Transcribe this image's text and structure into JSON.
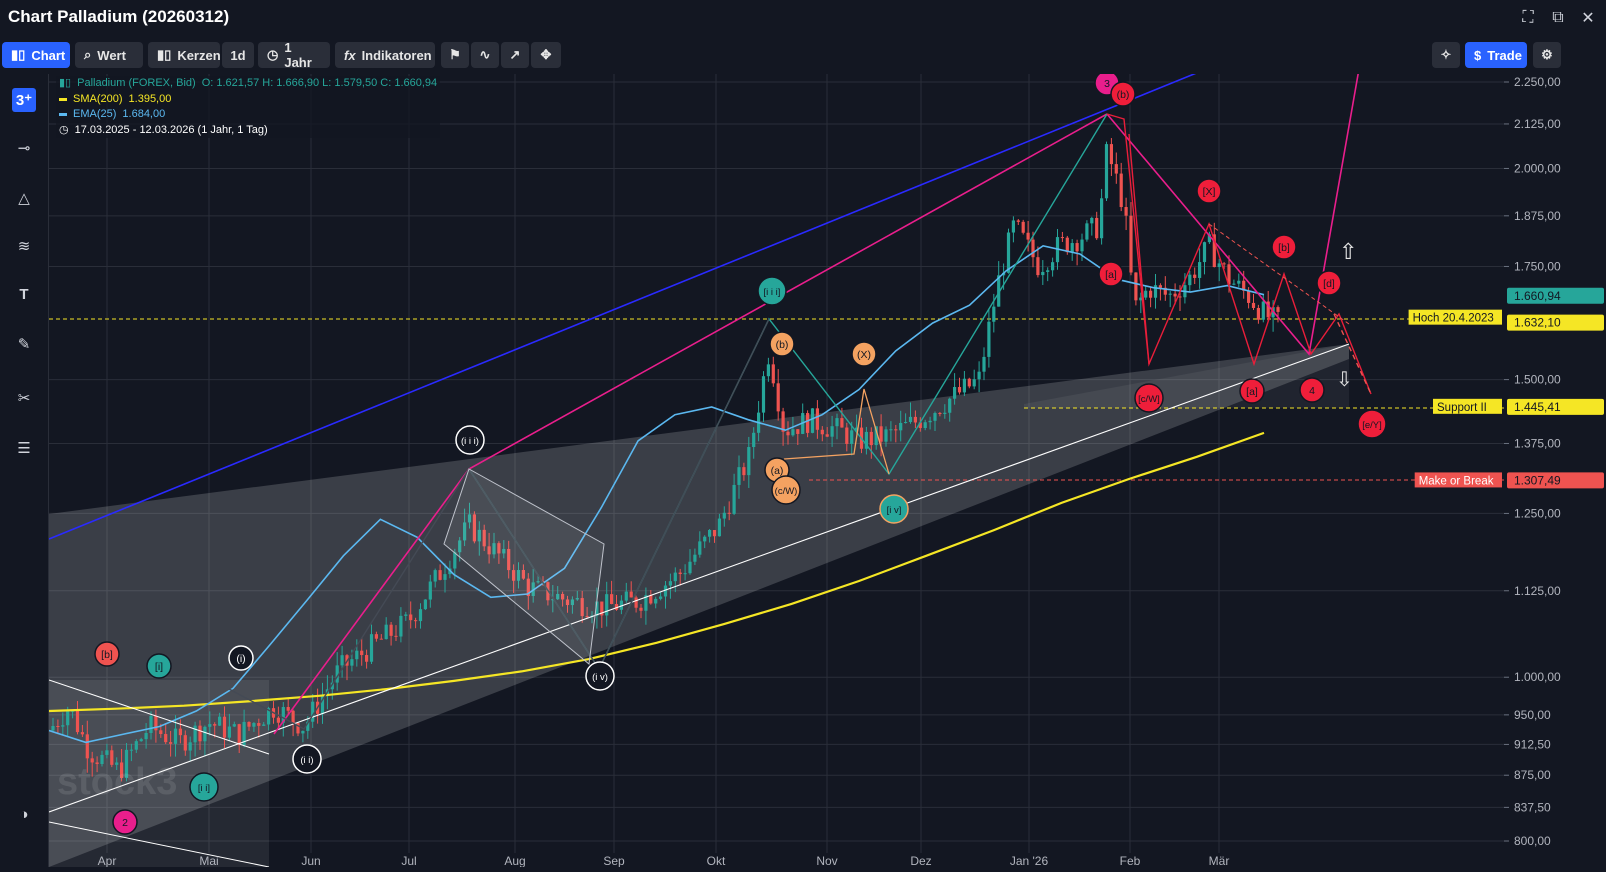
{
  "window": {
    "title": "Chart Palladium (20260312)"
  },
  "toolbar": {
    "chart_label": "Chart",
    "wert_label": "Wert",
    "kerzen_label": "Kerzen",
    "interval_label": "1d",
    "period_label": "1 Jahr",
    "indicators_label": "Indikatoren",
    "trade_label": "Trade"
  },
  "legend": {
    "instrument": "Palladium (FOREX, Bid)",
    "ohlc": "O: 1.621,57  H: 1.666,90  L: 1.579,50  C: 1.660,94",
    "sma_label": "SMA(200)",
    "sma_value": "1.395,00",
    "ema_label": "EMA(25)",
    "ema_value": "1.684,00",
    "range": "17.03.2025 - 12.03.2026  (1 Jahr, 1 Tag)"
  },
  "colors": {
    "sma": "#f5e625",
    "ema": "#5bb8f0",
    "up": "#26a69a",
    "down": "#ef5350",
    "accent": "#2962ff"
  },
  "chart_data": {
    "type": "candlestick",
    "x_labels": [
      "Apr",
      "Mai",
      "Jun",
      "Jul",
      "Aug",
      "Sep",
      "Okt",
      "Nov",
      "Dez",
      "Jan '26",
      "Feb",
      "Mär"
    ],
    "y_ticks": [
      "2.250,00",
      "2.125,00",
      "2.000,00",
      "1.875,00",
      "1.750,00",
      "1.500,00",
      "1.375,00",
      "1.250,00",
      "1.125,00",
      "1.000,00",
      "950,00",
      "912,50",
      "875,00",
      "837,50",
      "800,00"
    ],
    "y_scale": "log",
    "y_range": [
      800,
      2300
    ],
    "price_tags": [
      {
        "text": "1.660,94",
        "price": 1660.94,
        "color": "#26a69a"
      },
      {
        "text": "1.632,10",
        "price": 1632.1,
        "color": "#f5e625"
      },
      {
        "text": "1.445,41",
        "price": 1445.41,
        "color": "#f5e625"
      },
      {
        "text": "1.307,49",
        "price": 1307.49,
        "color": "#ef5350"
      }
    ],
    "level_labels": [
      {
        "text": "Hoch 20.4.2023",
        "price": 1632.1,
        "color": "#f5e625"
      },
      {
        "text": "Support II",
        "price": 1445.41,
        "color": "#f5e625"
      },
      {
        "text": "Make or Break",
        "price": 1307.49,
        "color": "#ef5350"
      }
    ],
    "series": [
      {
        "name": "SMA(200)",
        "values": [
          955,
          958,
          962,
          968,
          975,
          984,
          995,
          1008,
          1025,
          1048,
          1075,
          1105,
          1140,
          1180,
          1222,
          1268,
          1310,
          1350,
          1395
        ]
      },
      {
        "name": "EMA(25)",
        "values": [
          930,
          915,
          925,
          935,
          955,
          985,
          1045,
          1110,
          1180,
          1240,
          1210,
          1150,
          1115,
          1120,
          1160,
          1260,
          1380,
          1430,
          1445,
          1420,
          1400,
          1430,
          1480,
          1560,
          1620,
          1660,
          1740,
          1800,
          1780,
          1720,
          1700,
          1690,
          1705,
          1684
        ]
      }
    ],
    "wave_labels": [
      "[b]",
      "[i]",
      "(i)",
      "2",
      "[i i]",
      "(i i)",
      "(i i i)",
      "(i v)",
      "[i i i]",
      "(b)",
      "(X)",
      "(a)",
      "(c/W)",
      "[i v]",
      "3",
      "(b)",
      "[a]",
      "[X]",
      "[b]",
      "[d]",
      "[c/W]",
      "[a]",
      "4",
      "[e/Y]"
    ]
  }
}
